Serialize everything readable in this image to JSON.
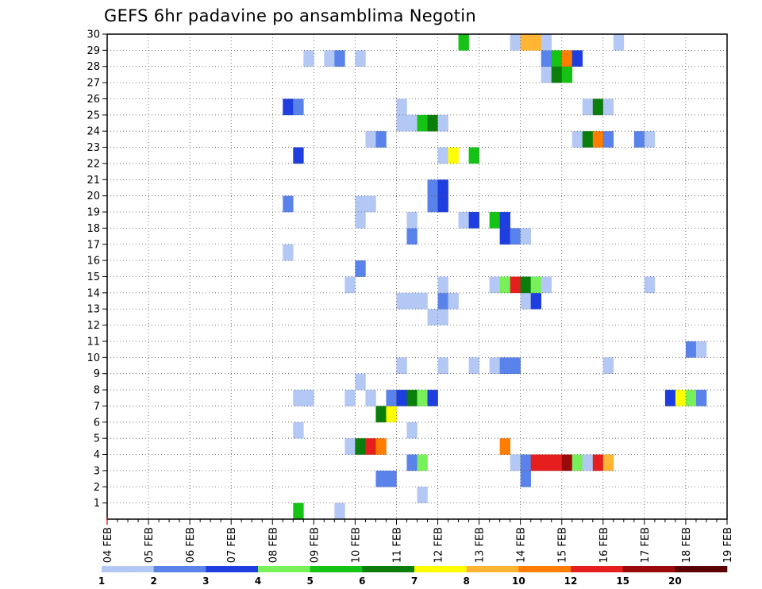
{
  "chart_data": {
    "type": "heatmap",
    "title": "GEFS 6hr padavine po ansamblima Negotin",
    "x_tick_labels": [
      "04 FEB",
      "05 FEB",
      "06 FEB",
      "07 FEB",
      "08 FEB",
      "09 FEB",
      "10 FEB",
      "11 FEB",
      "12 FEB",
      "13 FEB",
      "14 FEB",
      "15 FEB",
      "16 FEB",
      "17 FEB",
      "18 FEB",
      "19 FEB"
    ],
    "y_tick_labels": [
      "1",
      "2",
      "3",
      "4",
      "5",
      "6",
      "7",
      "8",
      "9",
      "10",
      "11",
      "12",
      "13",
      "14",
      "15",
      "16",
      "17",
      "18",
      "19",
      "20",
      "21",
      "22",
      "23",
      "24",
      "25",
      "26",
      "27",
      "28",
      "29",
      "30"
    ],
    "xlim_steps": [
      0,
      60
    ],
    "ylim_members": [
      0,
      30
    ],
    "grid": "dotted",
    "legend": {
      "position": "bottom",
      "boundaries": [
        "1",
        "2",
        "3",
        "4",
        "5",
        "6",
        "7",
        "8",
        "10",
        "12",
        "15",
        "20"
      ],
      "colors": [
        "#b4c8f5",
        "#5a82eb",
        "#1e3ee0",
        "#78f05a",
        "#14c314",
        "#0a7d0a",
        "#ffff00",
        "#ffb432",
        "#ff7d00",
        "#e61e1e",
        "#9b0a0a",
        "#5a0000"
      ]
    },
    "cells_note": "each cell: [member, step(6h from 04 FEB 00Z), colorIndex]",
    "cells": [
      [
        0,
        18,
        4
      ],
      [
        0,
        22,
        0
      ],
      [
        1,
        30,
        0
      ],
      [
        2,
        26,
        1
      ],
      [
        2,
        27,
        1
      ],
      [
        2,
        40,
        1
      ],
      [
        3,
        29,
        1
      ],
      [
        3,
        30,
        3
      ],
      [
        3,
        39,
        0
      ],
      [
        3,
        40,
        1
      ],
      [
        3,
        41,
        9
      ],
      [
        3,
        42,
        9
      ],
      [
        3,
        43,
        9
      ],
      [
        3,
        44,
        10
      ],
      [
        3,
        45,
        3
      ],
      [
        3,
        46,
        0
      ],
      [
        3,
        47,
        9
      ],
      [
        3,
        48,
        7
      ],
      [
        4,
        23,
        0
      ],
      [
        4,
        24,
        5
      ],
      [
        4,
        25,
        9
      ],
      [
        4,
        26,
        8
      ],
      [
        4,
        38,
        8
      ],
      [
        5,
        18,
        0
      ],
      [
        5,
        29,
        0
      ],
      [
        6,
        26,
        5
      ],
      [
        6,
        27,
        6
      ],
      [
        7,
        18,
        0
      ],
      [
        7,
        19,
        0
      ],
      [
        7,
        23,
        0
      ],
      [
        7,
        25,
        0
      ],
      [
        7,
        27,
        1
      ],
      [
        7,
        28,
        2
      ],
      [
        7,
        29,
        5
      ],
      [
        7,
        30,
        3
      ],
      [
        7,
        31,
        2
      ],
      [
        7,
        54,
        2
      ],
      [
        7,
        55,
        6
      ],
      [
        7,
        56,
        3
      ],
      [
        7,
        57,
        1
      ],
      [
        8,
        24,
        0
      ],
      [
        9,
        28,
        0
      ],
      [
        9,
        32,
        0
      ],
      [
        9,
        35,
        0
      ],
      [
        9,
        37,
        0
      ],
      [
        9,
        38,
        1
      ],
      [
        9,
        39,
        1
      ],
      [
        9,
        48,
        0
      ],
      [
        10,
        56,
        1
      ],
      [
        10,
        57,
        0
      ],
      [
        12,
        31,
        0
      ],
      [
        12,
        32,
        0
      ],
      [
        13,
        28,
        0
      ],
      [
        13,
        29,
        0
      ],
      [
        13,
        30,
        0
      ],
      [
        13,
        32,
        1
      ],
      [
        13,
        33,
        0
      ],
      [
        13,
        40,
        0
      ],
      [
        13,
        41,
        2
      ],
      [
        14,
        23,
        0
      ],
      [
        14,
        32,
        0
      ],
      [
        14,
        37,
        0
      ],
      [
        14,
        38,
        3
      ],
      [
        14,
        39,
        9
      ],
      [
        14,
        40,
        5
      ],
      [
        14,
        41,
        3
      ],
      [
        14,
        42,
        0
      ],
      [
        14,
        52,
        0
      ],
      [
        15,
        24,
        1
      ],
      [
        16,
        17,
        0
      ],
      [
        17,
        29,
        1
      ],
      [
        17,
        38,
        2
      ],
      [
        17,
        39,
        1
      ],
      [
        17,
        40,
        0
      ],
      [
        18,
        24,
        0
      ],
      [
        18,
        29,
        0
      ],
      [
        18,
        34,
        0
      ],
      [
        18,
        35,
        2
      ],
      [
        18,
        37,
        4
      ],
      [
        18,
        38,
        2
      ],
      [
        19,
        17,
        1
      ],
      [
        19,
        24,
        0
      ],
      [
        19,
        25,
        0
      ],
      [
        19,
        31,
        1
      ],
      [
        19,
        32,
        2
      ],
      [
        20,
        31,
        1
      ],
      [
        20,
        32,
        2
      ],
      [
        22,
        18,
        2
      ],
      [
        22,
        32,
        0
      ],
      [
        22,
        33,
        6
      ],
      [
        22,
        35,
        4
      ],
      [
        23,
        25,
        0
      ],
      [
        23,
        26,
        1
      ],
      [
        23,
        45,
        0
      ],
      [
        23,
        46,
        5
      ],
      [
        23,
        47,
        8
      ],
      [
        23,
        48,
        1
      ],
      [
        23,
        51,
        1
      ],
      [
        23,
        52,
        0
      ],
      [
        24,
        28,
        0
      ],
      [
        24,
        29,
        0
      ],
      [
        24,
        30,
        4
      ],
      [
        24,
        31,
        5
      ],
      [
        24,
        32,
        0
      ],
      [
        25,
        17,
        2
      ],
      [
        25,
        18,
        1
      ],
      [
        25,
        28,
        0
      ],
      [
        25,
        46,
        0
      ],
      [
        25,
        47,
        5
      ],
      [
        25,
        48,
        0
      ],
      [
        27,
        42,
        0
      ],
      [
        27,
        43,
        5
      ],
      [
        27,
        44,
        4
      ],
      [
        28,
        19,
        0
      ],
      [
        28,
        21,
        0
      ],
      [
        28,
        22,
        1
      ],
      [
        28,
        24,
        0
      ],
      [
        28,
        42,
        1
      ],
      [
        28,
        43,
        4
      ],
      [
        28,
        44,
        8
      ],
      [
        28,
        45,
        2
      ],
      [
        29,
        34,
        4
      ],
      [
        29,
        39,
        0
      ],
      [
        29,
        40,
        7
      ],
      [
        29,
        41,
        7
      ],
      [
        29,
        42,
        0
      ],
      [
        29,
        49,
        0
      ]
    ]
  }
}
